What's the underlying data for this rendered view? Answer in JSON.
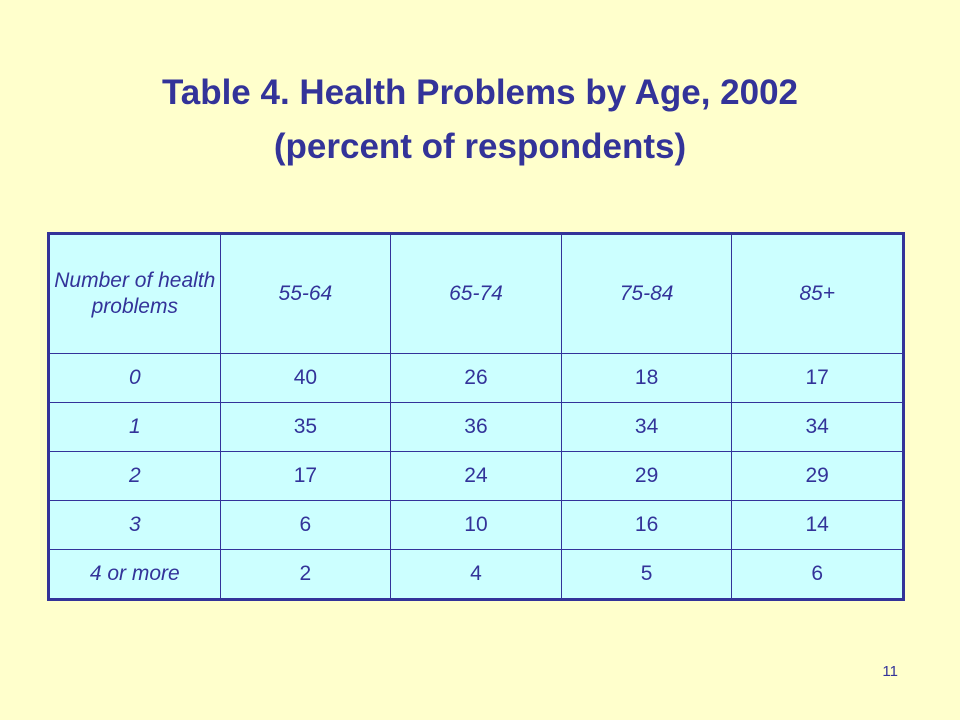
{
  "title": {
    "line1": "Table 4.  Health Problems by Age, 2002",
    "line2": "(percent of respondents)"
  },
  "table": {
    "headers": [
      "Number of health problems",
      "55-64",
      "65-74",
      "75-84",
      "85+"
    ],
    "rows": [
      {
        "label": "0",
        "values": [
          "40",
          "26",
          "18",
          "17"
        ]
      },
      {
        "label": "1",
        "values": [
          "35",
          "36",
          "34",
          "34"
        ]
      },
      {
        "label": "2",
        "values": [
          "17",
          "24",
          "29",
          "29"
        ]
      },
      {
        "label": "3",
        "values": [
          "6",
          "10",
          "16",
          "14"
        ]
      },
      {
        "label": "4 or more",
        "values": [
          "2",
          "4",
          "5",
          "6"
        ]
      }
    ]
  },
  "page_number": "11",
  "colors": {
    "background": "#ffffcc",
    "table_fill": "#ccffff",
    "text": "#333399"
  }
}
